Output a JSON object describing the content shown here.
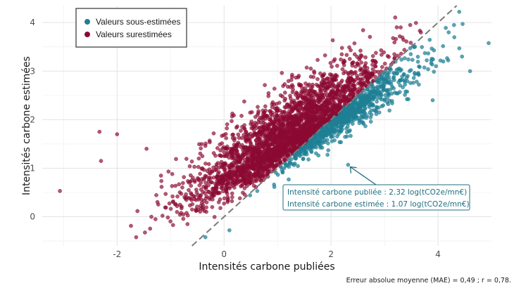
{
  "chart_data": {
    "type": "scatter",
    "xlabel": "Intensités carbone publiées",
    "ylabel": "Intensités carbone estimées",
    "caption": "Erreur absolue moyenne (MAE) = 0,49 ; r = 0,78.",
    "xlim": [
      -3.4,
      5.0
    ],
    "ylim": [
      -0.6,
      4.35
    ],
    "x_ticks": [
      -2,
      0,
      2,
      4
    ],
    "x_tick_labels": [
      "-2",
      "0",
      "2",
      "4"
    ],
    "y_ticks": [
      0,
      1,
      2,
      3,
      4
    ],
    "y_tick_labels": [
      "0",
      "1",
      "2",
      "3",
      "4"
    ],
    "grid": true,
    "legend_position": "top-left",
    "reference_line": {
      "type": "identity",
      "style": "dashed",
      "color": "#7a7a7a"
    },
    "series": [
      {
        "name": "Valeurs sous-estimées",
        "color": "#1f7f94",
        "rule": "y < x",
        "points": []
      },
      {
        "name": "Valeurs surestimées",
        "color": "#8b0a32",
        "rule": "y > x",
        "points": []
      }
    ],
    "distribution_summary": {
      "approx_point_count": 3600,
      "center_x": 1.5,
      "center_y": 1.8,
      "note": "dense cloud along a positive trend; outliers near x=-3.1 y=0.5, x=-2.3 y=1.7, x=4.6 y=3.0"
    },
    "highlighted_points": [
      {
        "x": 2.32,
        "y": 1.07
      }
    ],
    "annotation": {
      "lines": [
        "Intensité carbone publiée : 2.32 log(tCO2e/mn€)",
        "Intensité carbone estimée : 1.07 log(tCO2e/mn€)"
      ],
      "color": "#1f6f80"
    }
  }
}
